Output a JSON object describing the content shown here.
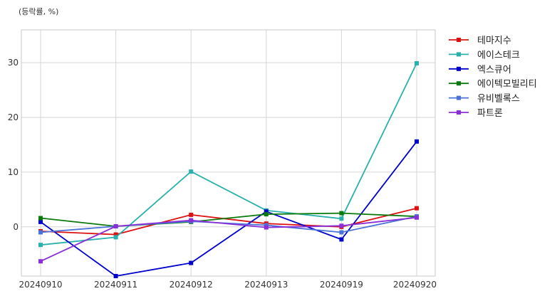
{
  "chart_data": {
    "type": "line",
    "title": "",
    "ylabel": "(등락률, %)",
    "xlabel": "",
    "categories": [
      "20240910",
      "20240911",
      "20240912",
      "20240913",
      "20240919",
      "20240920"
    ],
    "yticks": [
      0,
      10,
      20,
      30
    ],
    "ylim": [
      -9,
      36
    ],
    "grid": true,
    "legend_position": "right",
    "series": [
      {
        "name": "테마지수",
        "color": "#dd1111",
        "values": [
          -0.8,
          -1.4,
          2.2,
          0.6,
          0.0,
          3.4
        ]
      },
      {
        "name": "에이스테크",
        "color": "#2ab0ad",
        "values": [
          -3.3,
          -1.9,
          10.1,
          3.0,
          1.5,
          29.9
        ]
      },
      {
        "name": "엑스큐어",
        "color": "#0000cc",
        "values": [
          0.9,
          -9.0,
          -6.6,
          2.8,
          -2.3,
          15.6
        ]
      },
      {
        "name": "에이텍모빌리티",
        "color": "#0b7a0b",
        "values": [
          1.6,
          0.1,
          0.9,
          2.3,
          2.5,
          1.9
        ]
      },
      {
        "name": "유비벨록스",
        "color": "#4a72d8",
        "values": [
          -1.0,
          0.1,
          1.0,
          0.3,
          -1.0,
          1.9
        ]
      },
      {
        "name": "파트론",
        "color": "#8a2ed8",
        "values": [
          -6.3,
          0.1,
          1.2,
          -0.1,
          0.2,
          1.7
        ]
      }
    ]
  }
}
